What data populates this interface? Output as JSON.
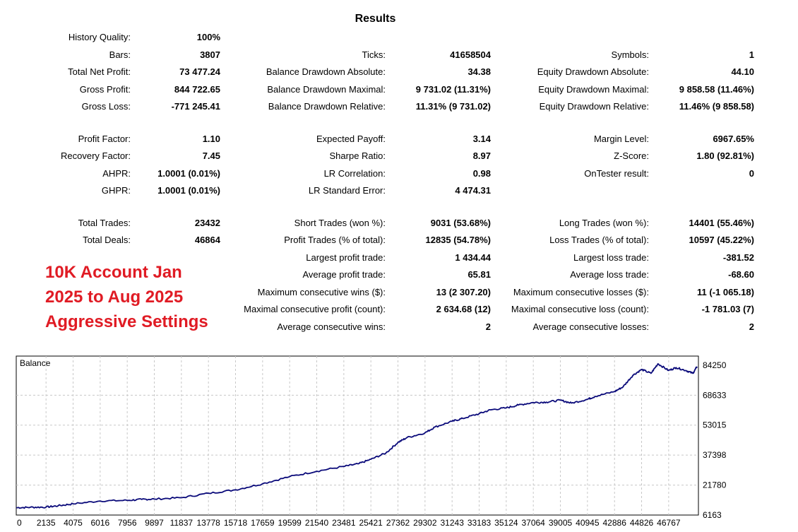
{
  "title": "Results",
  "rows": [
    {
      "r": 0,
      "cells": [
        {
          "c": 0,
          "label": "History Quality:",
          "value": "100%"
        }
      ]
    },
    {
      "r": 1,
      "cells": [
        {
          "c": 0,
          "label": "Bars:",
          "value": "3807"
        },
        {
          "c": 1,
          "label": "Ticks:",
          "value": "41658504"
        },
        {
          "c": 2,
          "label": "Symbols:",
          "value": "1"
        }
      ]
    },
    {
      "r": 2,
      "cells": [
        {
          "c": 0,
          "label": "Total Net Profit:",
          "value": "73 477.24"
        },
        {
          "c": 1,
          "label": "Balance Drawdown Absolute:",
          "value": "34.38"
        },
        {
          "c": 2,
          "label": "Equity Drawdown Absolute:",
          "value": "44.10"
        }
      ]
    },
    {
      "r": 3,
      "cells": [
        {
          "c": 0,
          "label": "Gross Profit:",
          "value": "844 722.65"
        },
        {
          "c": 1,
          "label": "Balance Drawdown Maximal:",
          "value": "9 731.02 (11.31%)"
        },
        {
          "c": 2,
          "label": "Equity Drawdown Maximal:",
          "value": "9 858.58 (11.46%)"
        }
      ]
    },
    {
      "r": 4,
      "cells": [
        {
          "c": 0,
          "label": "Gross Loss:",
          "value": "-771 245.41"
        },
        {
          "c": 1,
          "label": "Balance Drawdown Relative:",
          "value": "11.31% (9 731.02)"
        },
        {
          "c": 2,
          "label": "Equity Drawdown Relative:",
          "value": "11.46% (9 858.58)"
        }
      ]
    },
    {
      "r": 5,
      "cells": [
        {
          "c": 0,
          "label": "Profit Factor:",
          "value": "1.10"
        },
        {
          "c": 1,
          "label": "Expected Payoff:",
          "value": "3.14"
        },
        {
          "c": 2,
          "label": "Margin Level:",
          "value": "6967.65%"
        }
      ]
    },
    {
      "r": 6,
      "cells": [
        {
          "c": 0,
          "label": "Recovery Factor:",
          "value": "7.45"
        },
        {
          "c": 1,
          "label": "Sharpe Ratio:",
          "value": "8.97"
        },
        {
          "c": 2,
          "label": "Z-Score:",
          "value": "1.80 (92.81%)"
        }
      ]
    },
    {
      "r": 7,
      "cells": [
        {
          "c": 0,
          "label": "AHPR:",
          "value": "1.0001 (0.01%)"
        },
        {
          "c": 1,
          "label": "LR Correlation:",
          "value": "0.98"
        },
        {
          "c": 2,
          "label": "OnTester result:",
          "value": "0"
        }
      ]
    },
    {
      "r": 8,
      "cells": [
        {
          "c": 0,
          "label": "GHPR:",
          "value": "1.0001 (0.01%)"
        },
        {
          "c": 1,
          "label": "LR Standard Error:",
          "value": "4 474.31"
        }
      ]
    },
    {
      "r": 9,
      "cells": [
        {
          "c": 0,
          "label": "Total Trades:",
          "value": "23432"
        },
        {
          "c": 1,
          "label": "Short Trades (won %):",
          "value": "9031 (53.68%)"
        },
        {
          "c": 2,
          "label": "Long Trades (won %):",
          "value": "14401 (55.46%)"
        }
      ]
    },
    {
      "r": 10,
      "cells": [
        {
          "c": 0,
          "label": "Total Deals:",
          "value": "46864"
        },
        {
          "c": 1,
          "label": "Profit Trades (% of total):",
          "value": "12835 (54.78%)"
        },
        {
          "c": 2,
          "label": "Loss Trades (% of total):",
          "value": "10597 (45.22%)"
        }
      ]
    },
    {
      "r": 11,
      "cells": [
        {
          "c": 1,
          "label": "Largest profit trade:",
          "value": "1 434.44"
        },
        {
          "c": 2,
          "label": "Largest loss trade:",
          "value": "-381.52"
        }
      ]
    },
    {
      "r": 12,
      "cells": [
        {
          "c": 1,
          "label": "Average profit trade:",
          "value": "65.81"
        },
        {
          "c": 2,
          "label": "Average loss trade:",
          "value": "-68.60"
        }
      ]
    },
    {
      "r": 13,
      "cells": [
        {
          "c": 1,
          "label": "Maximum consecutive wins ($):",
          "value": "13 (2 307.20)"
        },
        {
          "c": 2,
          "label": "Maximum consecutive losses ($):",
          "value": "11 (-1 065.18)"
        }
      ]
    },
    {
      "r": 14,
      "cells": [
        {
          "c": 1,
          "label": "Maximal consecutive profit (count):",
          "value": "2 634.68 (12)"
        },
        {
          "c": 2,
          "label": "Maximal consecutive loss (count):",
          "value": "-1 781.03 (7)"
        }
      ]
    },
    {
      "r": 15,
      "cells": [
        {
          "c": 1,
          "label": "Average consecutive wins:",
          "value": "2"
        },
        {
          "c": 2,
          "label": "Average consecutive losses:",
          "value": "2"
        }
      ]
    }
  ],
  "overlay_lines": [
    "10K Account Jan",
    "2025 to Aug 2025",
    "Aggressive Settings"
  ],
  "colors": {
    "overlay": "#e01b24",
    "balance_line": "#0a0a7a",
    "grid": "#c8c8c8"
  },
  "chart_data": {
    "type": "line",
    "title": "Balance",
    "x_ticks": [
      "0",
      "2135",
      "4075",
      "6016",
      "7956",
      "9897",
      "11837",
      "13778",
      "15718",
      "17659",
      "19599",
      "21540",
      "23481",
      "25421",
      "27362",
      "29302",
      "31243",
      "33183",
      "35124",
      "37064",
      "39005",
      "40945",
      "42886",
      "44826",
      "46767"
    ],
    "y_ticks": [
      "84250",
      "68633",
      "53015",
      "37398",
      "21780",
      "6163"
    ],
    "xlim": [
      0,
      48900
    ],
    "ylim": [
      6163,
      89000
    ],
    "series": [
      {
        "x": [
          0,
          1000,
          2135,
          3000,
          4075,
          6016,
          7956,
          9000,
          9897,
          11837,
          13778,
          15718,
          17659,
          19599,
          21540,
          23481,
          24500,
          25421,
          26500,
          27362,
          28000,
          29302,
          30000,
          31243,
          32000,
          33183,
          34000,
          35124,
          36000,
          37064,
          38000,
          39005,
          39800,
          40945,
          41500,
          42886,
          43500,
          44200,
          44826,
          45500,
          46000,
          46767,
          47300,
          48000,
          48500,
          48800
        ],
        "values": [
          10000,
          10200,
          10300,
          11000,
          12000,
          13500,
          13800,
          14300,
          14500,
          15200,
          17500,
          19300,
          22500,
          26200,
          29000,
          31500,
          32800,
          35200,
          38500,
          44000,
          46500,
          49000,
          52000,
          55000,
          56500,
          59000,
          61000,
          62000,
          63500,
          64800,
          65000,
          66000,
          64500,
          66500,
          68000,
          70500,
          73000,
          79000,
          82000,
          80000,
          85000,
          81500,
          83000,
          81500,
          80000,
          83500
        ]
      }
    ]
  }
}
